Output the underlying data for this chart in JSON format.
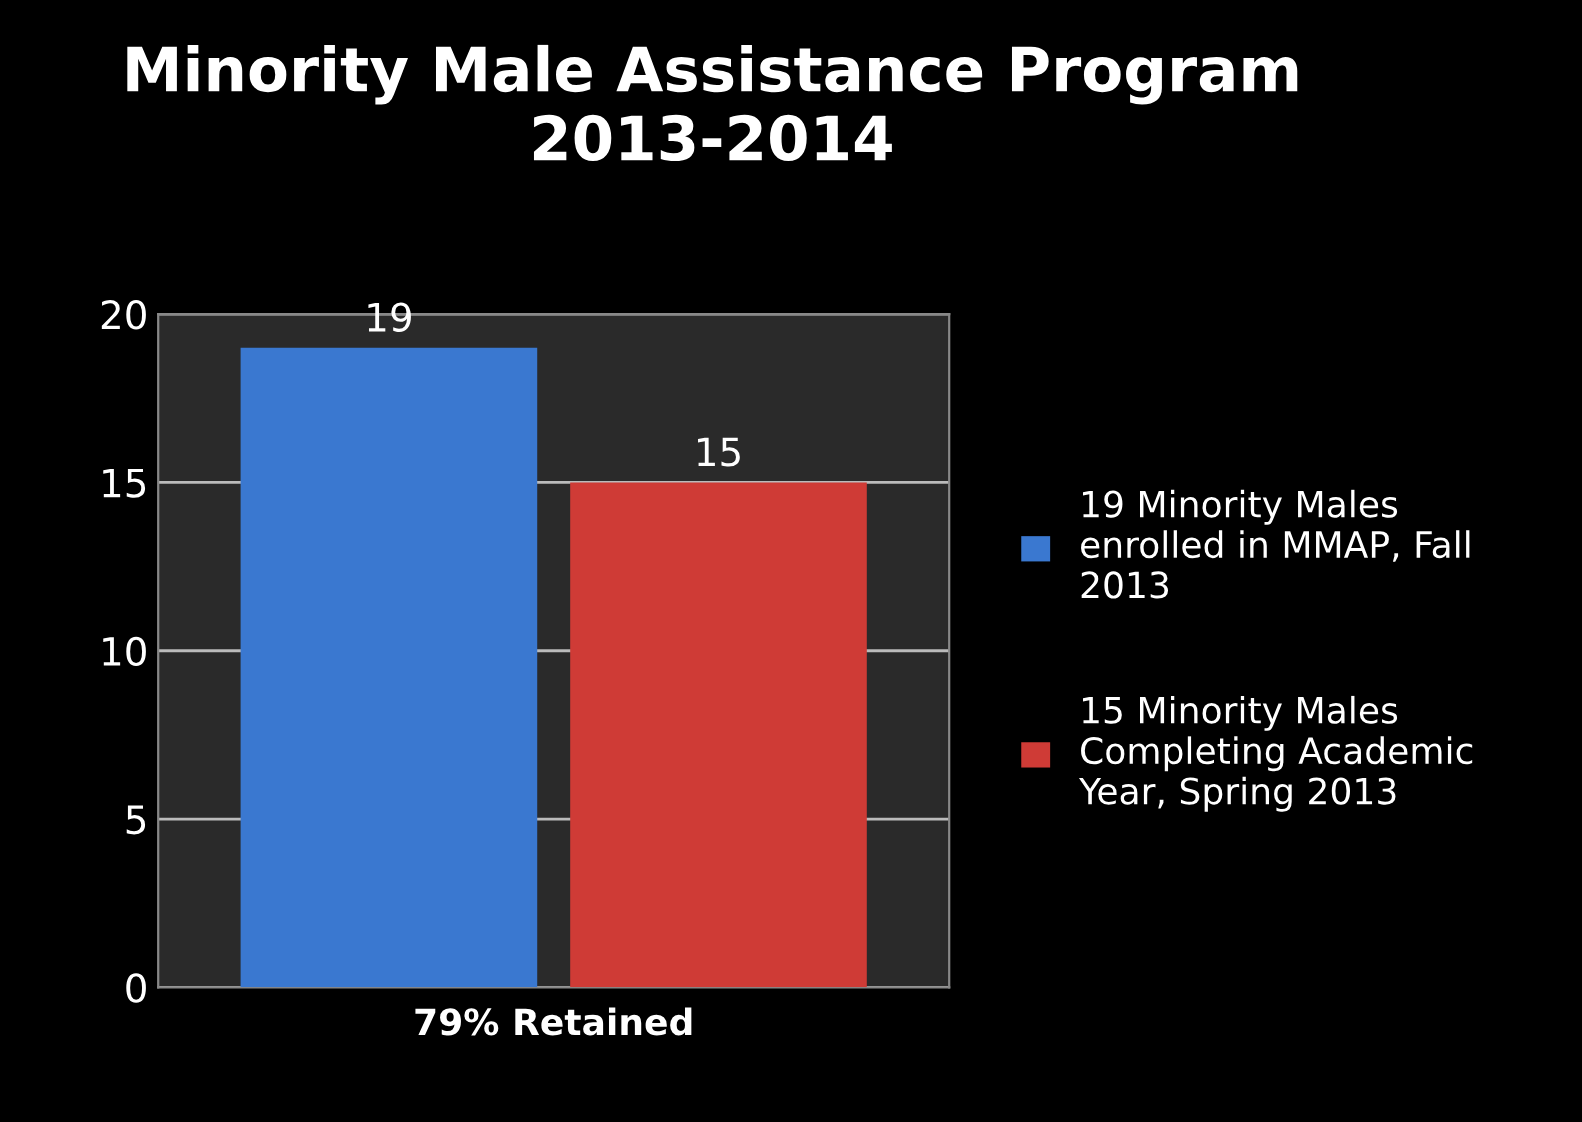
{
  "chart_data": {
    "type": "bar",
    "title": "Minority Male Assistance Program\n2013-2014",
    "categories": [
      null,
      null
    ],
    "series": [
      {
        "name": "19 Minority Males enrolled in MMAP, Fall 2013",
        "color": "#3a78d0",
        "values": [
          19,
          null
        ]
      },
      {
        "name": "15 Minority Males Completing Academic Year, Spring 2013",
        "color": "#cf3b36",
        "values": [
          null,
          15
        ]
      }
    ],
    "annotations": [
      "79% Retained"
    ],
    "ylim": [
      0,
      20
    ],
    "yticks": [
      0,
      5,
      10,
      15,
      20
    ],
    "grid": "y",
    "legend": "right",
    "data_labels": true
  }
}
